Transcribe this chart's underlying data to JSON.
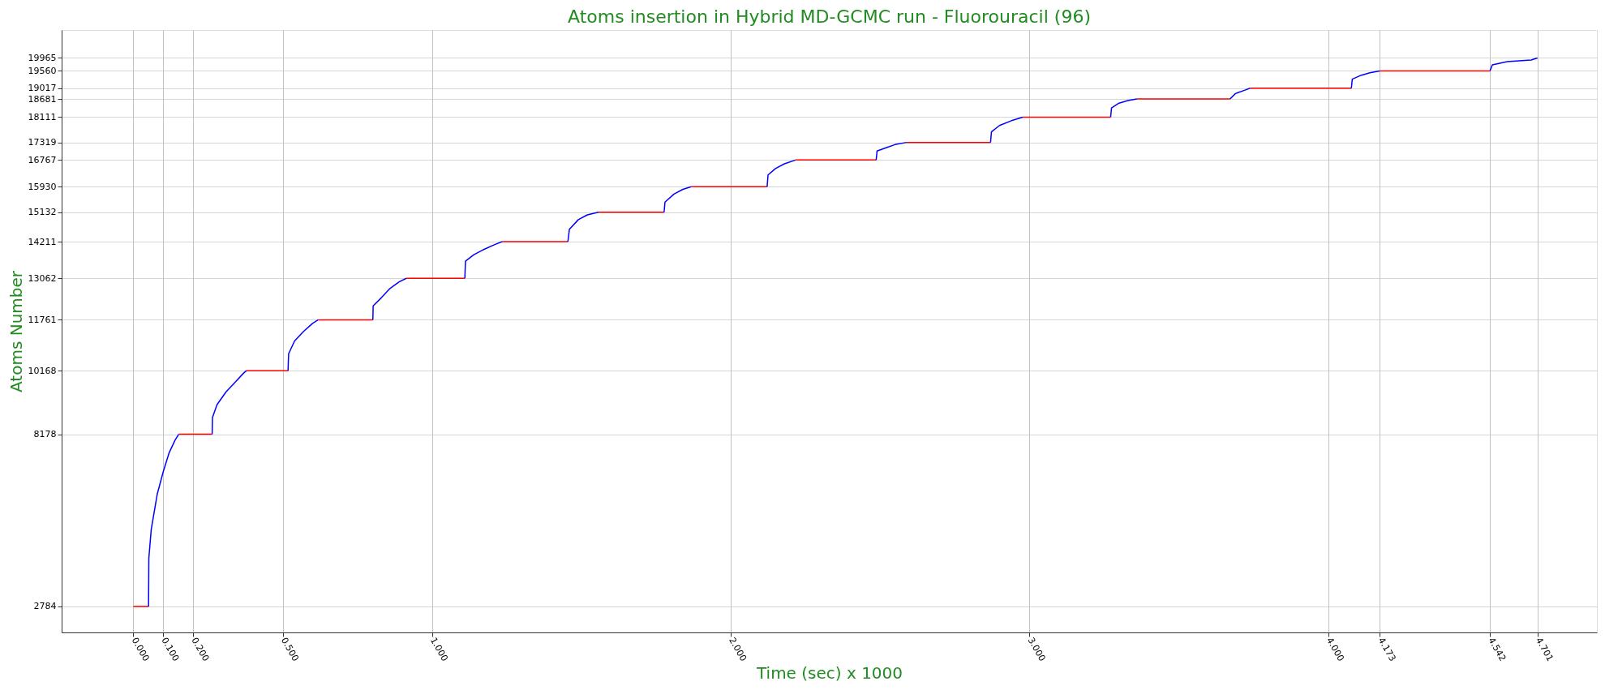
{
  "chart_data": {
    "type": "line",
    "title": "Atoms insertion in Hybrid MD-GCMC run - Fluorouracil (96)",
    "xlabel": "Time (sec) x 1000",
    "ylabel": "Atoms Number",
    "xlim": [
      -0.24,
      4.9
    ],
    "ylim": [
      1970,
      20840
    ],
    "xticks": [
      {
        "value": 0,
        "label": "0.000"
      },
      {
        "value": 0.1,
        "label": "0.100"
      },
      {
        "value": 0.2,
        "label": "0.200"
      },
      {
        "value": 0.5,
        "label": "0.500"
      },
      {
        "value": 1,
        "label": "1.000"
      },
      {
        "value": 2,
        "label": "2.000"
      },
      {
        "value": 3,
        "label": "3.000"
      },
      {
        "value": 4,
        "label": "4.000"
      },
      4.173,
      4.542,
      4.701
    ],
    "yticks": [
      2784,
      8178,
      10168,
      11761,
      13062,
      14211,
      15132,
      15930,
      16767,
      17319,
      18111,
      18681,
      19017,
      19560,
      19965
    ],
    "grid": true,
    "series": [
      {
        "color": "#ff0000",
        "x": [
          0,
          0.051,
          0.052,
          0.152,
          0.264,
          0.265,
          0.379,
          0.518,
          0.519,
          0.619,
          0.802,
          0.803,
          0.914,
          1.11,
          1.111,
          1.235,
          1.455,
          1.456,
          1.557,
          1.777,
          1.778,
          1.868,
          2.122,
          2.123,
          2.217,
          2.487,
          2.488,
          2.589,
          2.87,
          2.871,
          2.978,
          3.272,
          3.273,
          3.36,
          3.672,
          3.673,
          3.739,
          4.078,
          4.079,
          4.173,
          4.542
        ],
        "values": [
          2784,
          2784,
          null,
          8178,
          8178,
          null,
          10168,
          10168,
          null,
          11761,
          11761,
          null,
          13062,
          13062,
          null,
          14211,
          14211,
          null,
          15132,
          15132,
          null,
          15930,
          15930,
          null,
          16767,
          16767,
          null,
          17319,
          17319,
          null,
          18111,
          18111,
          null,
          18681,
          18681,
          null,
          19017,
          19017,
          null,
          19560,
          19560
        ]
      },
      {
        "color": "#0000ff",
        "x": [
          0.051,
          0.052,
          0.06,
          0.08,
          0.1,
          0.12,
          0.14,
          0.152,
          0.2,
          0.264,
          0.265,
          0.28,
          0.31,
          0.34,
          0.37,
          0.379,
          0.45,
          0.518,
          0.52,
          0.54,
          0.57,
          0.6,
          0.619,
          0.7,
          0.802,
          0.803,
          0.83,
          0.86,
          0.89,
          0.914,
          1.0,
          1.11,
          1.112,
          1.14,
          1.17,
          1.21,
          1.235,
          1.3,
          1.455,
          1.46,
          1.49,
          1.52,
          1.557,
          1.6,
          1.777,
          1.78,
          1.81,
          1.84,
          1.868,
          2.0,
          2.122,
          2.125,
          2.15,
          2.18,
          2.217,
          2.3,
          2.487,
          2.49,
          2.52,
          2.55,
          2.589,
          2.7,
          2.87,
          2.873,
          2.9,
          2.94,
          2.978,
          3.1,
          3.272,
          3.275,
          3.3,
          3.33,
          3.36,
          3.5,
          3.672,
          3.69,
          3.72,
          3.739,
          3.9,
          4.078,
          4.081,
          4.11,
          4.14,
          4.173,
          4.3,
          4.542,
          4.55,
          4.6,
          4.65,
          4.68,
          4.701
        ],
        "values": [
          2784,
          4300,
          5200,
          6300,
          7000,
          7600,
          8000,
          8178,
          null,
          8178,
          8700,
          9100,
          9500,
          9800,
          10100,
          10168,
          null,
          10168,
          10700,
          11100,
          11400,
          11650,
          11761,
          null,
          11761,
          12200,
          12450,
          12750,
          12950,
          13062,
          null,
          13062,
          13600,
          13800,
          13950,
          14120,
          14211,
          null,
          14211,
          14600,
          14900,
          15050,
          15132,
          null,
          15132,
          15450,
          15700,
          15850,
          15930,
          null,
          15930,
          16300,
          16500,
          16650,
          16767,
          null,
          16767,
          17050,
          17150,
          17250,
          17319,
          null,
          17319,
          17650,
          17850,
          18000,
          18111,
          null,
          18111,
          18400,
          18550,
          18630,
          18681,
          null,
          18681,
          18850,
          18950,
          19017,
          null,
          19017,
          19300,
          19420,
          19500,
          19560,
          null,
          19560,
          19750,
          19850,
          19880,
          19900,
          19965
        ]
      }
    ]
  }
}
